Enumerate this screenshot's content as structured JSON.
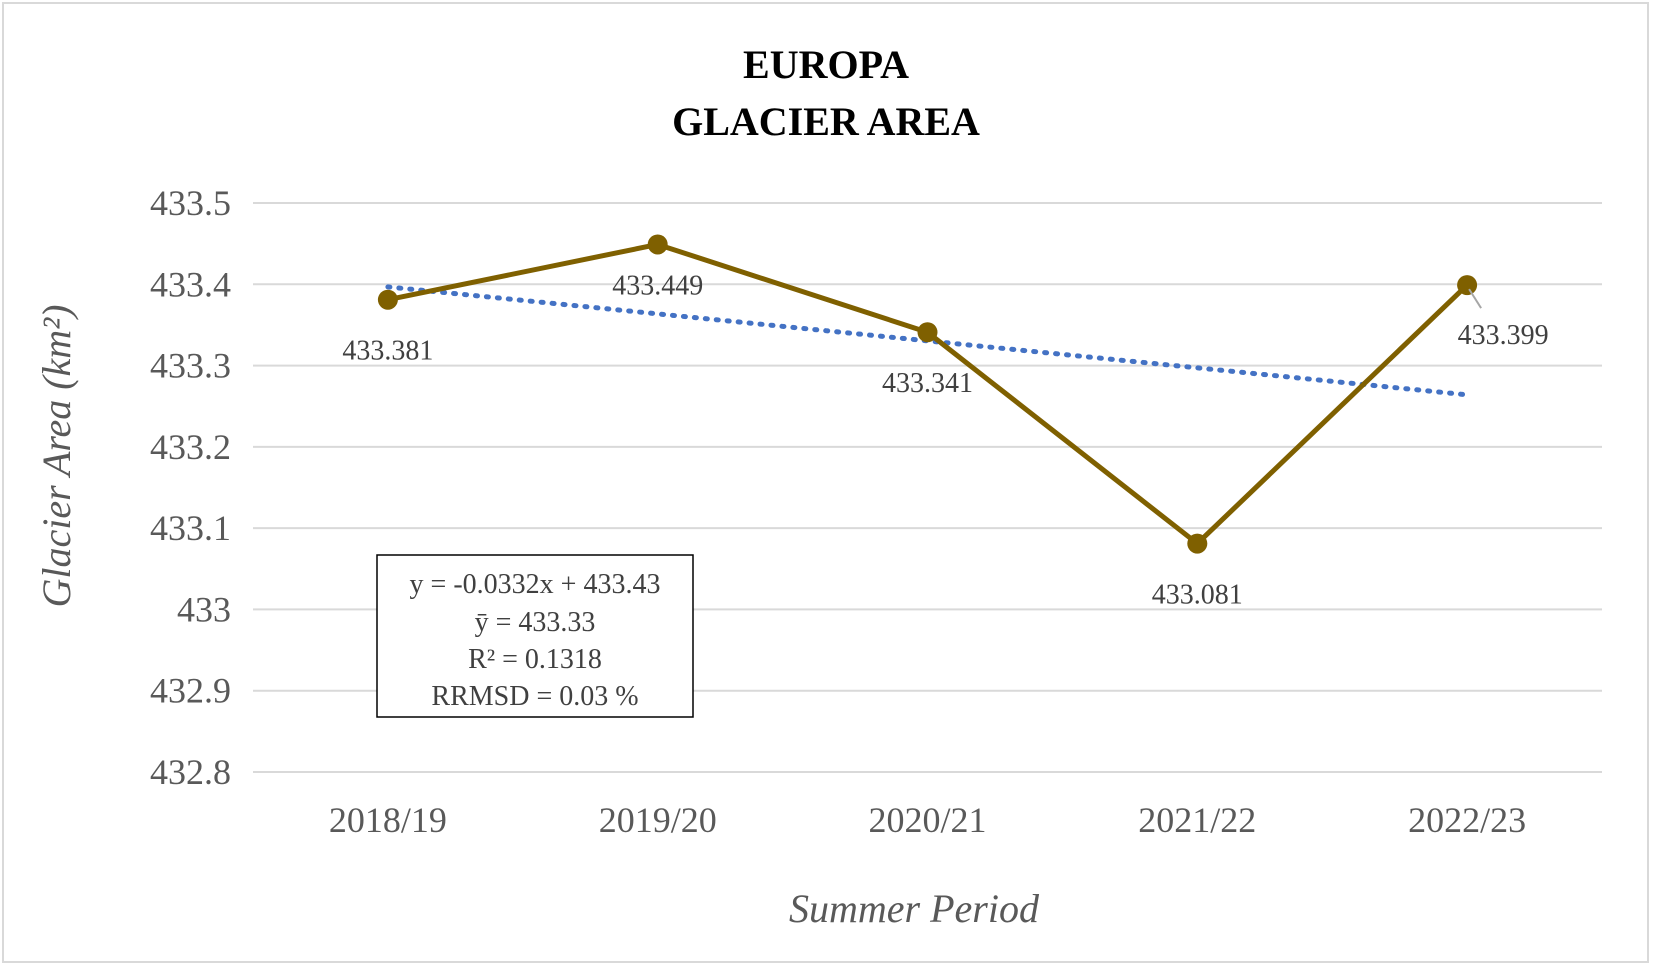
{
  "chart_data": {
    "type": "line",
    "title_line1": "EUROPA",
    "title_line2": "GLACIER AREA",
    "xlabel": "Summer Period",
    "ylabel": "Glacier Area (km²)",
    "ylim": [
      432.8,
      433.5
    ],
    "ytick_step": 0.1,
    "yticks": [
      "432.8",
      "432.9",
      "433",
      "433.1",
      "433.2",
      "433.3",
      "433.4",
      "433.5"
    ],
    "categories": [
      "2018/19",
      "2019/20",
      "2020/21",
      "2021/22",
      "2022/23"
    ],
    "grid": true,
    "series": [
      {
        "values": [
          433.381,
          433.449,
          433.341,
          433.081,
          433.399
        ],
        "data_labels": [
          "433.381",
          "433.449",
          "433.341",
          "433.081",
          "433.399"
        ],
        "color": "#7f6000",
        "marker": "circle"
      }
    ],
    "trendline": {
      "type": "linear",
      "slope": -0.0332,
      "intercept": 433.43,
      "color": "#4472c4",
      "style": "dotted"
    },
    "annotation_box": {
      "lines": [
        "y = -0.0332x + 433.43",
        "ȳ = 433.33",
        "R² = 0.1318",
        "RRMSD =  0.03 %"
      ]
    },
    "colors": {
      "gridline": "#d9d9d9",
      "tick_text": "#595959",
      "label_text": "#404040",
      "leader_line": "#a6a6a6"
    }
  }
}
